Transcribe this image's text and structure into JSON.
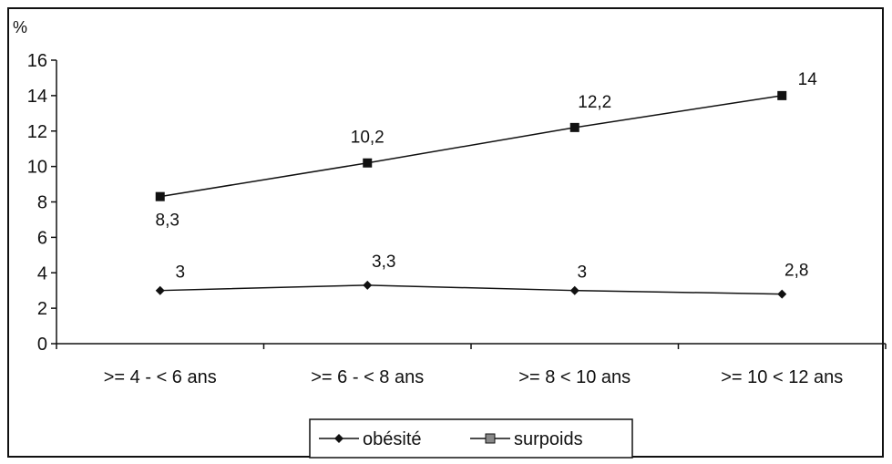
{
  "chart_data": {
    "type": "line",
    "title": "",
    "ylabel": "%",
    "xlabel": "",
    "ylim": [
      0,
      16
    ],
    "yticks": [
      0,
      2,
      4,
      6,
      8,
      10,
      12,
      14,
      16
    ],
    "grid": false,
    "legend_position": "bottom-center",
    "categories": [
      ">= 4 - < 6 ans",
      ">= 6 - < 8 ans",
      ">= 8 < 10 ans",
      ">= 10 < 12 ans"
    ],
    "series": [
      {
        "name": "obésité",
        "marker": "diamond",
        "color": "#111111",
        "values": [
          3,
          3.3,
          3,
          2.8
        ],
        "labels": [
          "3",
          "3,3",
          "3",
          "2,8"
        ]
      },
      {
        "name": "surpoids",
        "marker": "square",
        "color": "#111111",
        "values": [
          8.3,
          10.2,
          12.2,
          14
        ],
        "labels": [
          "8,3",
          "10,2",
          "12,2",
          "14"
        ]
      }
    ]
  }
}
